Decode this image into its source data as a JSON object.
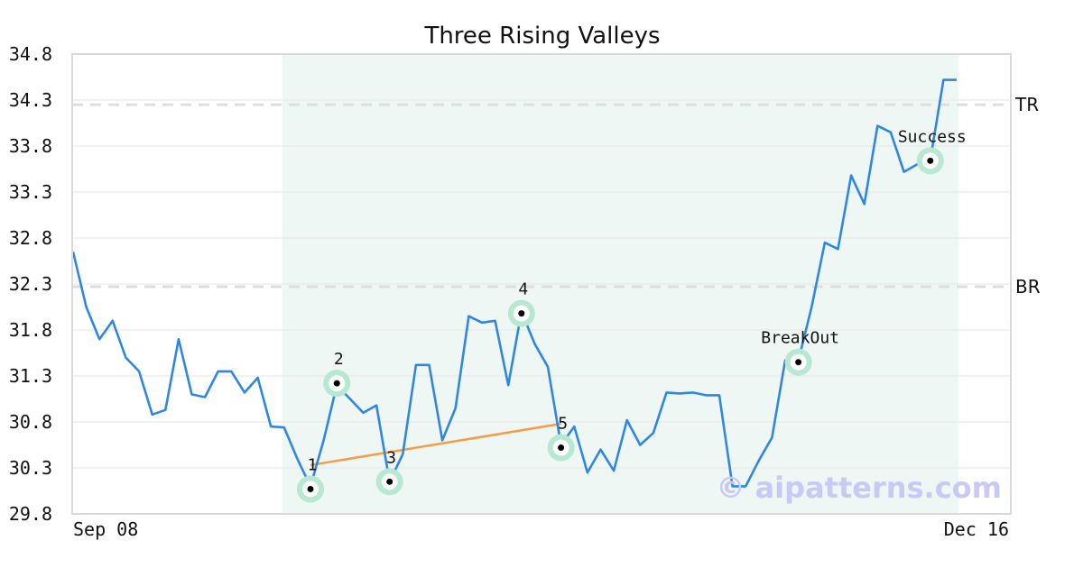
{
  "chart_data": {
    "type": "line",
    "title": "Three Rising Valleys",
    "xlabel": "",
    "ylabel": "",
    "x_tick_labels": [
      "Sep 08",
      "Dec 16"
    ],
    "y_ticks": [
      "29.8",
      "30.3",
      "30.8",
      "31.3",
      "31.8",
      "32.3",
      "32.8",
      "33.3",
      "33.8",
      "34.3",
      "34.8"
    ],
    "ylim": [
      29.8,
      34.8
    ],
    "grid": "horizontal",
    "series": [
      {
        "color": "#2f87e2",
        "values": [
          32.65,
          32.05,
          31.7,
          31.9,
          31.5,
          31.35,
          30.88,
          30.93,
          31.7,
          31.1,
          31.07,
          31.35,
          31.35,
          31.12,
          31.28,
          30.75,
          30.74,
          30.4,
          30.1,
          30.6,
          31.2,
          31.05,
          30.9,
          30.98,
          30.15,
          30.45,
          31.42,
          31.42,
          30.6,
          30.95,
          31.95,
          31.88,
          31.9,
          31.2,
          32.0,
          31.65,
          31.4,
          30.55,
          30.75,
          30.25,
          30.5,
          30.27,
          30.82,
          30.55,
          30.68,
          31.12,
          31.11,
          31.12,
          31.09,
          31.09,
          30.1,
          30.1,
          30.38,
          30.63,
          31.47,
          31.47,
          32.05,
          32.75,
          32.68,
          33.48,
          33.17,
          34.02,
          33.95,
          33.52,
          33.6,
          33.65,
          34.52,
          34.52
        ]
      }
    ],
    "reference_lines": [
      {
        "label": "TR",
        "value": 34.25,
        "color": "#dddddd"
      },
      {
        "label": "BR",
        "value": 32.27,
        "color": "#dddddd"
      }
    ],
    "highlight_region": {
      "from_index": 16,
      "to_index": 67,
      "color": "#eef7f3"
    },
    "trendline": {
      "from_index": 18,
      "from_value": 30.33,
      "to_index": 37,
      "to_value": 30.78,
      "color": "#f59c45"
    },
    "marked_points": [
      {
        "label": "1",
        "index": 18,
        "value": 30.07,
        "label_pos": "above"
      },
      {
        "label": "2",
        "index": 20,
        "value": 31.22,
        "label_pos": "above"
      },
      {
        "label": "3",
        "index": 24,
        "value": 30.15,
        "label_pos": "above"
      },
      {
        "label": "4",
        "index": 34,
        "value": 31.98,
        "label_pos": "above"
      },
      {
        "label": "5",
        "index": 37,
        "value": 30.52,
        "label_pos": "above"
      },
      {
        "label": "BreakOut",
        "index": 55,
        "value": 31.45,
        "label_pos": "above"
      },
      {
        "label": "Success",
        "index": 65,
        "value": 33.64,
        "label_pos": "above"
      }
    ],
    "marker_colors": {
      "ring": "#b6e8d2",
      "dot": "#000000"
    },
    "watermark": "© aipatterns.com"
  }
}
